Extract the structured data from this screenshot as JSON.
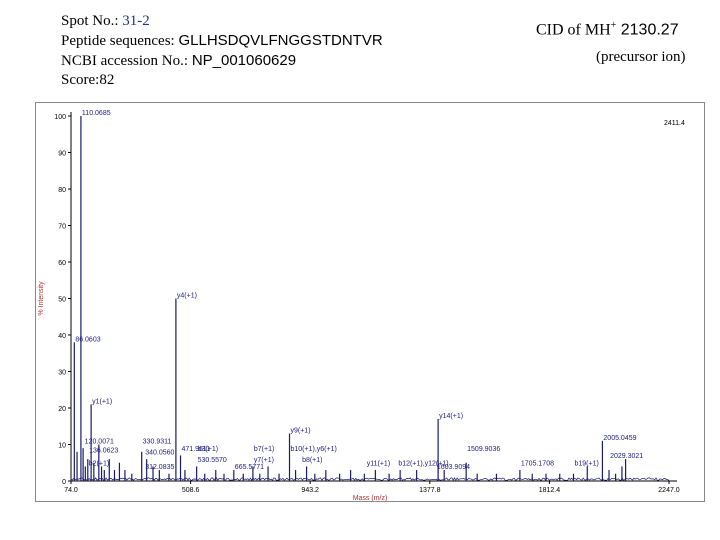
{
  "header": {
    "spot_label": "Spot No.: ",
    "spot_value": "31-2",
    "peptide_label": "Peptide sequences: ",
    "peptide_value": "GLLHSDQVLFNGGSTDNTVR",
    "accession_label": "NCBI accession No.: ",
    "accession_value": "NP_001060629",
    "score_text": "Score:82",
    "cid_prefix": "CID of MH",
    "cid_superscript": "+",
    "cid_mass": " 2130.27",
    "precursor_text": "(precursor ion)"
  },
  "colors": {
    "spectrum_line": "#1a1a6e",
    "label_text": "#1a1a80",
    "spot_value": "#1f2f9c",
    "frame": "#888888"
  },
  "chart_data": {
    "type": "line",
    "xlabel": "Mass (m/z)",
    "ylabel": "% Intensity",
    "xlim": [
      74.0,
      2247.0
    ],
    "ylim": [
      0,
      100
    ],
    "x_ticks": [
      "74.0",
      "508.6",
      "943.2",
      "1377.8",
      "1812.4",
      "2247.0"
    ],
    "x_tick_values": [
      74.0,
      508.6,
      943.2,
      1377.8,
      1812.4,
      2247.0
    ],
    "y_ticks": [
      0,
      10,
      20,
      30,
      40,
      50,
      60,
      70,
      80,
      90,
      100
    ],
    "corner_label": "2411.4",
    "peaks": [
      {
        "x": 86.06,
        "y": 38
      },
      {
        "x": 96,
        "y": 8
      },
      {
        "x": 110.07,
        "y": 100
      },
      {
        "x": 118,
        "y": 9
      },
      {
        "x": 126,
        "y": 4
      },
      {
        "x": 135,
        "y": 6
      },
      {
        "x": 147.11,
        "y": 21
      },
      {
        "x": 157,
        "y": 5
      },
      {
        "x": 175.12,
        "y": 10
      },
      {
        "x": 185,
        "y": 4
      },
      {
        "x": 195,
        "y": 3
      },
      {
        "x": 213.09,
        "y": 6
      },
      {
        "x": 232,
        "y": 3
      },
      {
        "x": 250,
        "y": 5
      },
      {
        "x": 270,
        "y": 3
      },
      {
        "x": 295,
        "y": 2
      },
      {
        "x": 330.93,
        "y": 8
      },
      {
        "x": 349,
        "y": 6
      },
      {
        "x": 372,
        "y": 4
      },
      {
        "x": 395,
        "y": 3
      },
      {
        "x": 430,
        "y": 2
      },
      {
        "x": 455.2,
        "y": 50
      },
      {
        "x": 471.96,
        "y": 7
      },
      {
        "x": 488,
        "y": 3
      },
      {
        "x": 530.55,
        "y": 4
      },
      {
        "x": 560,
        "y": 2
      },
      {
        "x": 600,
        "y": 3
      },
      {
        "x": 630,
        "y": 2
      },
      {
        "x": 665.58,
        "y": 3
      },
      {
        "x": 700,
        "y": 2
      },
      {
        "x": 735,
        "y": 4
      },
      {
        "x": 760,
        "y": 2
      },
      {
        "x": 790,
        "y": 4
      },
      {
        "x": 830,
        "y": 2
      },
      {
        "x": 868,
        "y": 13
      },
      {
        "x": 890,
        "y": 3
      },
      {
        "x": 930,
        "y": 4
      },
      {
        "x": 960,
        "y": 2
      },
      {
        "x": 1000,
        "y": 3
      },
      {
        "x": 1050,
        "y": 2
      },
      {
        "x": 1090,
        "y": 3
      },
      {
        "x": 1140,
        "y": 2
      },
      {
        "x": 1180,
        "y": 3
      },
      {
        "x": 1230,
        "y": 2
      },
      {
        "x": 1270,
        "y": 3
      },
      {
        "x": 1330,
        "y": 3
      },
      {
        "x": 1408,
        "y": 17
      },
      {
        "x": 1430,
        "y": 3
      },
      {
        "x": 1509.9,
        "y": 5
      },
      {
        "x": 1550,
        "y": 2
      },
      {
        "x": 1620,
        "y": 2
      },
      {
        "x": 1705.17,
        "y": 3
      },
      {
        "x": 1750,
        "y": 2
      },
      {
        "x": 1800,
        "y": 2
      },
      {
        "x": 1850,
        "y": 2
      },
      {
        "x": 1900,
        "y": 2
      },
      {
        "x": 1950,
        "y": 4
      },
      {
        "x": 2005.05,
        "y": 11
      },
      {
        "x": 2029,
        "y": 3
      },
      {
        "x": 2053,
        "y": 2
      },
      {
        "x": 2076,
        "y": 4
      },
      {
        "x": 2089.3,
        "y": 6
      }
    ],
    "annotations": [
      {
        "x": 110.07,
        "y": 100,
        "text": "110.0685"
      },
      {
        "x": 86.06,
        "y": 38,
        "text": "86.0603"
      },
      {
        "x": 455.2,
        "y": 50,
        "text": "y4(+1)"
      },
      {
        "x": 147.11,
        "y": 21,
        "text": "y1(+1)"
      },
      {
        "x": 120.08,
        "y": 10,
        "text": "120.0071"
      },
      {
        "x": 136.06,
        "y": 7.5,
        "text": "136.0623"
      },
      {
        "x": 135,
        "y": 4,
        "text": "b2(+1)"
      },
      {
        "x": 330.93,
        "y": 10,
        "text": "330.9311"
      },
      {
        "x": 340.1,
        "y": 7,
        "text": "340.0560"
      },
      {
        "x": 340,
        "y": 3,
        "text": "312.0835"
      },
      {
        "x": 471.96,
        "y": 8,
        "text": "471.9611"
      },
      {
        "x": 530.55,
        "y": 8,
        "text": "b3(+1)"
      },
      {
        "x": 530.55,
        "y": 5,
        "text": "530.5570"
      },
      {
        "x": 665.58,
        "y": 3,
        "text": "665.5771"
      },
      {
        "x": 735,
        "y": 8,
        "text": "b7(+1)"
      },
      {
        "x": 735,
        "y": 5,
        "text": "y7(+1)"
      },
      {
        "x": 868,
        "y": 13,
        "text": "y9(+1)"
      },
      {
        "x": 868,
        "y": 8,
        "text": "b10(+1),y6(+1)"
      },
      {
        "x": 910,
        "y": 5,
        "text": "b8(+1)"
      },
      {
        "x": 1145,
        "y": 4,
        "text": "y11(+1)"
      },
      {
        "x": 1260,
        "y": 4,
        "text": "b12(+1),y12(+1)"
      },
      {
        "x": 1408,
        "y": 17,
        "text": "y14(+1)"
      },
      {
        "x": 1509.9,
        "y": 8,
        "text": "1509.9036"
      },
      {
        "x": 1400,
        "y": 3,
        "text": "1603.9094"
      },
      {
        "x": 1705.17,
        "y": 4,
        "text": "1705.1708"
      },
      {
        "x": 1900,
        "y": 4,
        "text": "b19(+1)"
      },
      {
        "x": 2005.05,
        "y": 11,
        "text": "2005.0459"
      },
      {
        "x": 2029.3,
        "y": 6,
        "text": "2029.3021"
      }
    ]
  }
}
